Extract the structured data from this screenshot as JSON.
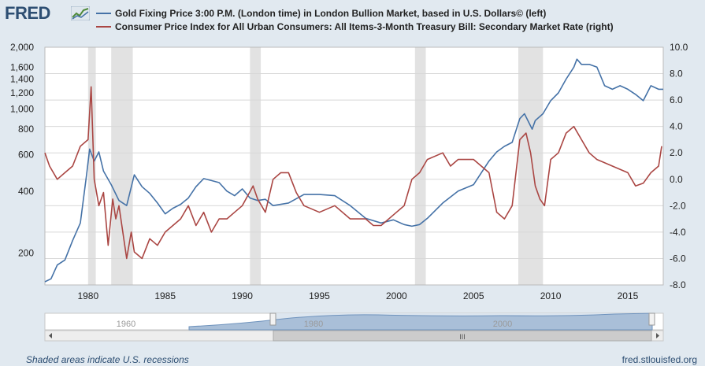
{
  "logo": {
    "text": "FRED",
    "icon": "chart-logo-icon"
  },
  "legend": [
    {
      "label": "Gold Fixing Price 3:00 P.M. (London time) in London Bullion Market, based in U.S. Dollars© (left)",
      "color": "#4572a7"
    },
    {
      "label": "Consumer Price Index for All Urban Consumers: All Items-3-Month Treasury Bill: Secondary Market Rate (right)",
      "color": "#aa4643"
    }
  ],
  "footer": {
    "left": "Shaded areas indicate U.S. recessions",
    "right": "fred.stlouisfed.org"
  },
  "navigator": {
    "labels": [
      "1960",
      "1980",
      "2000"
    ],
    "scroll_grip": "III"
  },
  "chart_data": {
    "type": "line",
    "title": "",
    "xlabel": "",
    "xlim": [
      1977.2,
      2017.3
    ],
    "x_ticks": [
      1980,
      1985,
      1990,
      1995,
      2000,
      2005,
      2010,
      2015
    ],
    "y_left": {
      "scale": "log",
      "ylim": [
        140,
        2000
      ],
      "ticks": [
        200,
        400,
        600,
        800,
        1000,
        1200,
        1400,
        1600,
        2000
      ],
      "tick_labels": [
        "200",
        "400",
        "600",
        "800",
        "1,000",
        "1,200",
        "1,400",
        "1,600",
        "2,000"
      ]
    },
    "y_right": {
      "scale": "linear",
      "ylim": [
        -8,
        10
      ],
      "ticks": [
        -8,
        -6,
        -4,
        -2,
        0,
        2,
        4,
        6,
        8,
        10
      ],
      "tick_labels": [
        "-8.0",
        "-6.0",
        "-4.0",
        "-2.0",
        "0.0",
        "2.0",
        "4.0",
        "6.0",
        "8.0",
        "10.0"
      ]
    },
    "recessions": [
      [
        1980.0,
        1980.5
      ],
      [
        1981.5,
        1982.9
      ],
      [
        1990.5,
        1991.2
      ],
      [
        2001.2,
        2001.9
      ],
      [
        2007.9,
        2009.5
      ]
    ],
    "series": [
      {
        "name": "Gold Fixing Price 3:00 P.M. (London time) in London Bullion Market, based in U.S. Dollars© (left)",
        "axis": "left",
        "x": [
          1977.2,
          1977.6,
          1978.0,
          1978.5,
          1979.0,
          1979.5,
          1979.9,
          1980.1,
          1980.4,
          1980.7,
          1981.0,
          1981.5,
          1982.0,
          1982.5,
          1983.0,
          1983.5,
          1984.0,
          1984.5,
          1985.0,
          1985.5,
          1986.0,
          1986.5,
          1987.0,
          1987.5,
          1988.0,
          1988.5,
          1989.0,
          1989.5,
          1990.0,
          1990.5,
          1991.0,
          1991.5,
          1992.0,
          1993.0,
          1994.0,
          1995.0,
          1996.0,
          1997.0,
          1998.0,
          1999.0,
          1999.8,
          2000.5,
          2001.0,
          2001.5,
          2002.0,
          2003.0,
          2004.0,
          2005.0,
          2006.0,
          2006.5,
          2007.0,
          2007.5,
          2008.0,
          2008.3,
          2008.8,
          2009.0,
          2009.5,
          2010.0,
          2010.5,
          2011.0,
          2011.5,
          2011.7,
          2012.0,
          2012.5,
          2013.0,
          2013.5,
          2014.0,
          2014.5,
          2015.0,
          2015.5,
          2016.0,
          2016.5,
          2017.0,
          2017.3
        ],
        "values": [
          145,
          150,
          175,
          185,
          230,
          280,
          480,
          640,
          560,
          620,
          500,
          430,
          360,
          340,
          480,
          420,
          390,
          350,
          310,
          330,
          345,
          370,
          420,
          460,
          450,
          440,
          400,
          380,
          410,
          370,
          360,
          365,
          340,
          350,
          385,
          385,
          380,
          340,
          295,
          280,
          290,
          275,
          270,
          275,
          295,
          350,
          400,
          430,
          560,
          620,
          660,
          690,
          900,
          950,
          800,
          880,
          950,
          1100,
          1200,
          1400,
          1600,
          1750,
          1650,
          1650,
          1600,
          1300,
          1250,
          1300,
          1250,
          1180,
          1100,
          1300,
          1250,
          1250
        ]
      },
      {
        "name": "Consumer Price Index for All Urban Consumers: All Items-3-Month Treasury Bill: Secondary Market Rate (right)",
        "axis": "right",
        "x": [
          1977.2,
          1977.5,
          1978.0,
          1978.5,
          1979.0,
          1979.5,
          1980.0,
          1980.2,
          1980.4,
          1980.7,
          1981.0,
          1981.3,
          1981.6,
          1981.8,
          1982.0,
          1982.5,
          1982.8,
          1983.0,
          1983.5,
          1984.0,
          1984.5,
          1985.0,
          1985.5,
          1986.0,
          1986.5,
          1987.0,
          1987.5,
          1988.0,
          1988.5,
          1989.0,
          1989.5,
          1990.0,
          1990.7,
          1991.0,
          1991.5,
          1992.0,
          1992.5,
          1993.0,
          1993.5,
          1994.0,
          1995.0,
          1996.0,
          1997.0,
          1998.0,
          1998.5,
          1999.0,
          2000.0,
          2000.5,
          2001.0,
          2001.5,
          2002.0,
          2003.0,
          2003.5,
          2004.0,
          2005.0,
          2005.5,
          2006.0,
          2006.5,
          2007.0,
          2007.5,
          2008.0,
          2008.4,
          2008.7,
          2009.0,
          2009.3,
          2009.6,
          2010.0,
          2010.5,
          2011.0,
          2011.5,
          2012.0,
          2012.5,
          2013.0,
          2014.0,
          2015.0,
          2015.5,
          2016.0,
          2016.5,
          2017.0,
          2017.2
        ],
        "values": [
          2.0,
          1.0,
          0.0,
          0.5,
          1.0,
          2.5,
          3.0,
          7.0,
          0.0,
          -2.0,
          -1.0,
          -5.0,
          -1.5,
          -3.0,
          -2.0,
          -6.0,
          -4.0,
          -5.5,
          -6.0,
          -4.5,
          -5.0,
          -4.0,
          -3.5,
          -3.0,
          -2.0,
          -3.5,
          -2.5,
          -4.0,
          -3.0,
          -3.0,
          -2.5,
          -2.0,
          -0.5,
          -1.5,
          -2.5,
          0.0,
          0.5,
          0.5,
          -1.0,
          -2.0,
          -2.5,
          -2.0,
          -3.0,
          -3.0,
          -3.5,
          -3.5,
          -2.5,
          -2.0,
          0.0,
          0.5,
          1.5,
          2.0,
          1.0,
          1.5,
          1.5,
          1.0,
          0.5,
          -2.5,
          -3.0,
          -2.0,
          3.0,
          3.5,
          2.0,
          -0.5,
          -1.5,
          -2.0,
          1.5,
          2.0,
          3.5,
          4.0,
          3.0,
          2.0,
          1.5,
          1.0,
          0.5,
          -0.5,
          -0.3,
          0.5,
          1.0,
          2.5
        ]
      }
    ]
  }
}
